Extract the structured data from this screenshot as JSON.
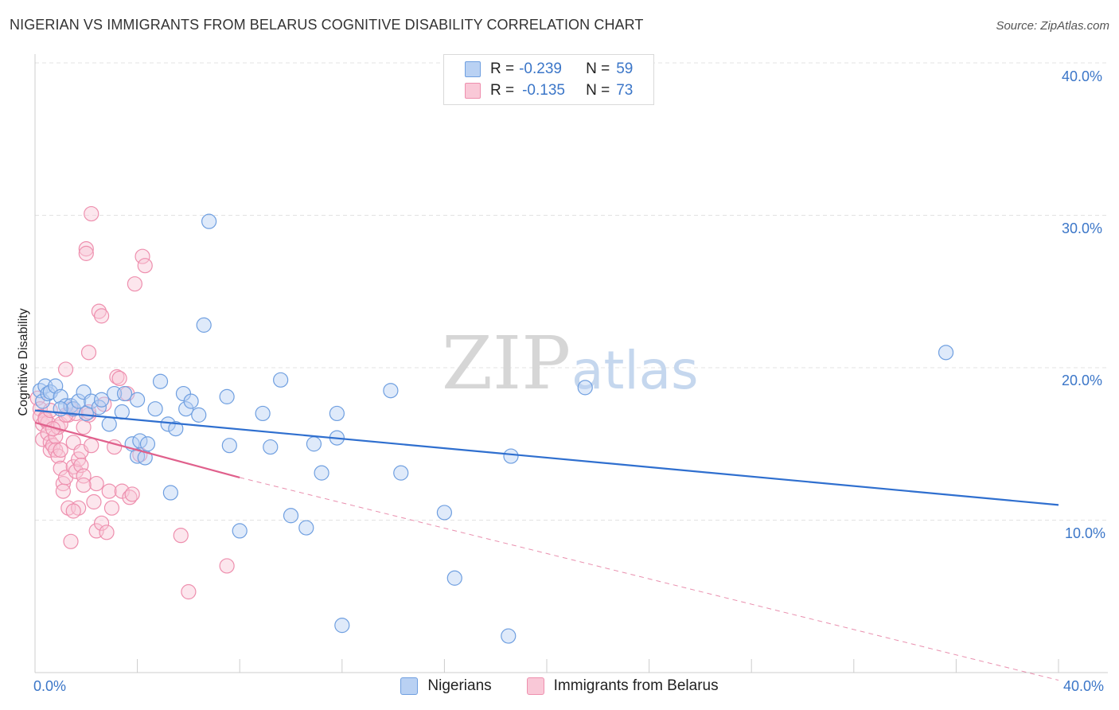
{
  "title": "NIGERIAN VS IMMIGRANTS FROM BELARUS COGNITIVE DISABILITY CORRELATION CHART",
  "source": "Source: ZipAtlas.com",
  "watermark": {
    "zip": "ZIP",
    "atlas": "atlas"
  },
  "legend_top": [
    {
      "r_label": "R =",
      "r_value": "-0.239",
      "n_label": "N =",
      "n_value": "59"
    },
    {
      "r_label": "R =",
      "r_value": "-0.135",
      "n_label": "N =",
      "n_value": "73"
    }
  ],
  "legend_bottom": [
    "Nigerians",
    "Immigrants from Belarus"
  ],
  "colors": {
    "blue_fill": "#b9d1f3",
    "blue_stroke": "#6f9fe0",
    "blue_line": "#2f6fcf",
    "pink_fill": "#f9c8d7",
    "pink_stroke": "#ee8fae",
    "pink_line": "#e0608c",
    "tick_text": "#3b76c8",
    "grid": "#e3e3e3"
  },
  "chart_data": {
    "type": "scatter",
    "title": "NIGERIAN VS IMMIGRANTS FROM BELARUS COGNITIVE DISABILITY CORRELATION CHART",
    "xlabel": "",
    "ylabel": "Cognitive Disability",
    "xlim": [
      0,
      40
    ],
    "ylim": [
      0,
      40
    ],
    "x_tick_labels": [
      "0.0%",
      "40.0%"
    ],
    "y_ticks": [
      10,
      20,
      30,
      40
    ],
    "y_tick_labels": [
      "10.0%",
      "20.0%",
      "30.0%",
      "40.0%"
    ],
    "grid": true,
    "series": [
      {
        "name": "Nigerians",
        "r": -0.239,
        "n": 59,
        "trend": {
          "x": [
            0,
            40
          ],
          "y": [
            17.2,
            11.0
          ],
          "style": "solid"
        },
        "points": [
          [
            0.2,
            18.5
          ],
          [
            0.3,
            17.8
          ],
          [
            0.4,
            18.8
          ],
          [
            0.5,
            18.3
          ],
          [
            0.6,
            18.4
          ],
          [
            0.8,
            18.8
          ],
          [
            1.0,
            18.1
          ],
          [
            1.2,
            17.5
          ],
          [
            1.4,
            17.5
          ],
          [
            1.5,
            17.3
          ],
          [
            1.7,
            17.8
          ],
          [
            1.9,
            18.4
          ],
          [
            2.0,
            17.0
          ],
          [
            2.2,
            17.8
          ],
          [
            2.5,
            17.4
          ],
          [
            2.6,
            17.9
          ],
          [
            2.9,
            16.3
          ],
          [
            3.1,
            18.3
          ],
          [
            3.4,
            17.1
          ],
          [
            3.5,
            18.3
          ],
          [
            3.8,
            15.0
          ],
          [
            4.0,
            14.2
          ],
          [
            4.0,
            17.9
          ],
          [
            4.1,
            15.2
          ],
          [
            4.3,
            14.1
          ],
          [
            4.4,
            15.0
          ],
          [
            4.7,
            17.3
          ],
          [
            4.9,
            19.1
          ],
          [
            5.2,
            16.3
          ],
          [
            5.3,
            11.8
          ],
          [
            5.5,
            16.0
          ],
          [
            5.8,
            18.3
          ],
          [
            5.9,
            17.3
          ],
          [
            6.1,
            17.8
          ],
          [
            6.4,
            16.9
          ],
          [
            6.8,
            29.6
          ],
          [
            6.6,
            22.8
          ],
          [
            7.5,
            18.1
          ],
          [
            7.6,
            14.9
          ],
          [
            8.0,
            9.3
          ],
          [
            8.9,
            17.0
          ],
          [
            9.2,
            14.8
          ],
          [
            9.6,
            19.2
          ],
          [
            10.0,
            10.3
          ],
          [
            10.6,
            9.5
          ],
          [
            10.9,
            15.0
          ],
          [
            11.2,
            13.1
          ],
          [
            11.8,
            17.0
          ],
          [
            11.8,
            15.4
          ],
          [
            12.0,
            3.1
          ],
          [
            13.9,
            18.5
          ],
          [
            14.3,
            13.1
          ],
          [
            16.0,
            10.5
          ],
          [
            16.4,
            6.2
          ],
          [
            18.5,
            2.4
          ],
          [
            18.6,
            14.2
          ],
          [
            21.5,
            18.7
          ],
          [
            35.6,
            21.0
          ],
          [
            1.0,
            17.3
          ]
        ]
      },
      {
        "name": "Immigrants from Belarus",
        "r": -0.135,
        "n": 73,
        "trend": {
          "x": [
            0,
            8.0
          ],
          "y": [
            16.4,
            12.8
          ],
          "style": "solid",
          "extended": {
            "x": [
              8.0,
              40
            ],
            "y": [
              12.8,
              -0.5
            ],
            "style": "dashed"
          }
        },
        "points": [
          [
            0.1,
            18.0
          ],
          [
            0.2,
            17.3
          ],
          [
            0.2,
            16.8
          ],
          [
            0.3,
            16.3
          ],
          [
            0.3,
            15.3
          ],
          [
            0.4,
            16.7
          ],
          [
            0.5,
            16.4
          ],
          [
            0.5,
            15.7
          ],
          [
            0.6,
            15.1
          ],
          [
            0.6,
            14.6
          ],
          [
            0.7,
            14.9
          ],
          [
            0.8,
            15.5
          ],
          [
            0.8,
            14.6
          ],
          [
            0.9,
            16.1
          ],
          [
            0.9,
            14.2
          ],
          [
            1.0,
            16.3
          ],
          [
            1.0,
            14.6
          ],
          [
            1.0,
            13.4
          ],
          [
            1.1,
            12.4
          ],
          [
            1.1,
            11.9
          ],
          [
            1.2,
            19.9
          ],
          [
            1.2,
            12.8
          ],
          [
            1.3,
            16.9
          ],
          [
            1.3,
            10.8
          ],
          [
            1.4,
            17.3
          ],
          [
            1.4,
            8.6
          ],
          [
            1.5,
            15.1
          ],
          [
            1.5,
            13.5
          ],
          [
            1.6,
            17.0
          ],
          [
            1.6,
            13.2
          ],
          [
            1.7,
            14.0
          ],
          [
            1.7,
            10.8
          ],
          [
            1.8,
            14.5
          ],
          [
            1.8,
            13.6
          ],
          [
            1.9,
            12.9
          ],
          [
            1.9,
            16.1
          ],
          [
            2.0,
            27.8
          ],
          [
            2.0,
            27.5
          ],
          [
            2.1,
            21.0
          ],
          [
            2.1,
            16.9
          ],
          [
            2.2,
            30.1
          ],
          [
            2.2,
            14.9
          ],
          [
            2.3,
            11.2
          ],
          [
            2.4,
            12.4
          ],
          [
            2.4,
            9.3
          ],
          [
            2.5,
            23.7
          ],
          [
            2.6,
            9.8
          ],
          [
            2.6,
            23.4
          ],
          [
            2.7,
            17.6
          ],
          [
            2.8,
            9.2
          ],
          [
            2.9,
            11.9
          ],
          [
            3.0,
            10.8
          ],
          [
            3.1,
            14.8
          ],
          [
            3.2,
            19.4
          ],
          [
            3.3,
            19.3
          ],
          [
            3.4,
            11.9
          ],
          [
            3.6,
            18.3
          ],
          [
            3.7,
            11.5
          ],
          [
            3.8,
            11.7
          ],
          [
            3.9,
            25.5
          ],
          [
            4.2,
            27.3
          ],
          [
            4.3,
            26.7
          ],
          [
            4.1,
            14.3
          ],
          [
            5.7,
            9.0
          ],
          [
            6.0,
            5.3
          ],
          [
            7.5,
            7.0
          ],
          [
            0.4,
            16.6
          ],
          [
            0.6,
            17.2
          ],
          [
            0.7,
            16.0
          ],
          [
            1.2,
            16.9
          ],
          [
            1.5,
            10.6
          ],
          [
            2.1,
            17.1
          ],
          [
            1.9,
            12.3
          ]
        ]
      }
    ]
  }
}
